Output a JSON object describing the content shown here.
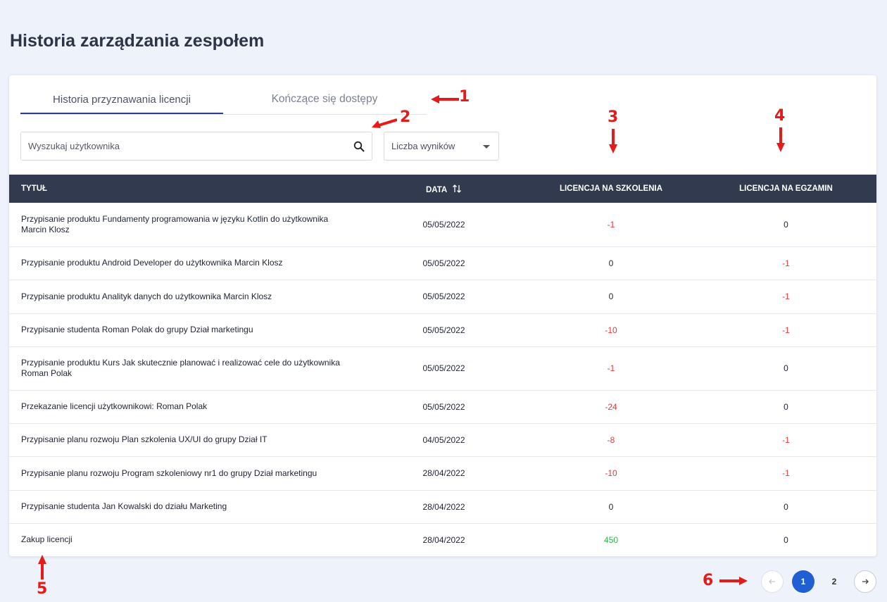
{
  "page": {
    "title": "Historia zarządzania zespołem"
  },
  "tabs": [
    {
      "label": "Historia przyznawania licencji",
      "active": true
    },
    {
      "label": "Kończące się dostępy",
      "active": false
    }
  ],
  "search": {
    "placeholder": "Wyszukaj użytkownika",
    "icon": "search-icon"
  },
  "results_select": {
    "placeholder": "Liczba wyników"
  },
  "table": {
    "headers": {
      "title": "TYTUŁ",
      "date": "DATA",
      "training": "LICENCJA NA SZKOLENIA",
      "exam": "LICENCJA NA EGZAMIN"
    },
    "rows": [
      {
        "title": "Przypisanie produktu Fundamenty programowania w języku Kotlin do użytkownika Marcin Klosz",
        "date": "05/05/2022",
        "training": "-1",
        "exam": "0"
      },
      {
        "title": "Przypisanie produktu Android Developer do użytkownika Marcin Klosz",
        "date": "05/05/2022",
        "training": "0",
        "exam": "-1"
      },
      {
        "title": "Przypisanie produktu Analityk danych do użytkownika Marcin Klosz",
        "date": "05/05/2022",
        "training": "0",
        "exam": "-1"
      },
      {
        "title": "Przypisanie studenta Roman Polak do grupy Dział marketingu",
        "date": "05/05/2022",
        "training": "-10",
        "exam": "-1"
      },
      {
        "title": "Przypisanie produktu Kurs Jak skutecznie planować i realizować cele do użytkownika Roman Polak",
        "date": "05/05/2022",
        "training": "-1",
        "exam": "0"
      },
      {
        "title": "Przekazanie licencji użytkownikowi: Roman Polak",
        "date": "05/05/2022",
        "training": "-24",
        "exam": "0"
      },
      {
        "title": "Przypisanie planu rozwoju Plan szkolenia UX/UI do grupy Dział IT",
        "date": "04/05/2022",
        "training": "-8",
        "exam": "-1"
      },
      {
        "title": "Przypisanie planu rozwoju Program szkoleniowy nr1 do grupy Dział marketingu",
        "date": "28/04/2022",
        "training": "-10",
        "exam": "-1"
      },
      {
        "title": "Przypisanie studenta Jan Kowalski do działu Marketing",
        "date": "28/04/2022",
        "training": "0",
        "exam": "0"
      },
      {
        "title": "Zakup licencji",
        "date": "28/04/2022",
        "training": "450",
        "exam": "0"
      }
    ]
  },
  "pagination": {
    "pages": [
      "1",
      "2"
    ],
    "current": "1",
    "prev_icon": "arrow-left-icon",
    "next_icon": "arrow-right-icon"
  },
  "annotations": [
    "1",
    "2",
    "3",
    "4",
    "5",
    "6"
  ],
  "colors": {
    "negative": "#e23a3a",
    "positive": "#2fb24a",
    "header_bg": "#313a4f",
    "accent": "#1f5fd1",
    "annotation": "#e41b1b"
  }
}
